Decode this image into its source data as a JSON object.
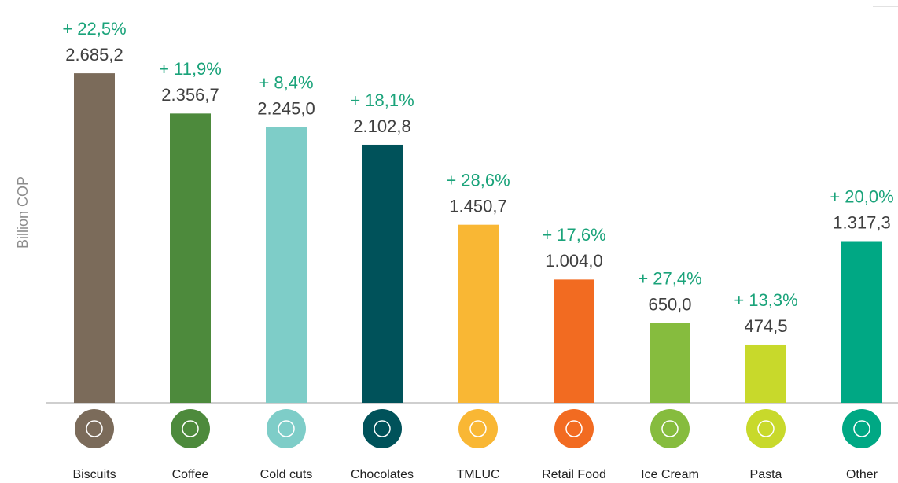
{
  "chart_data": {
    "type": "bar",
    "y_label": "Billion COP",
    "categories": [
      "Biscuits",
      "Coffee",
      "Cold cuts",
      "Chocolates",
      "TMLUC",
      "Retail Food",
      "Ice Cream",
      "Pasta",
      "Other"
    ],
    "values": [
      2685.2,
      2356.7,
      2245.0,
      2102.8,
      1450.7,
      1004.0,
      650.0,
      474.5,
      1317.3
    ],
    "value_labels": [
      "2.685,2",
      "2.356,7",
      "2.245,0",
      "2.102,8",
      "1.450,7",
      "1.004,0",
      "650,0",
      "474,5",
      "1.317,3"
    ],
    "growth_labels": [
      "+ 22,5%",
      "+ 11,9%",
      "+ 8,4%",
      "+ 18,1%",
      "+ 28,6%",
      "+ 17,6%",
      "+ 27,4%",
      "+ 13,3%",
      "+ 20,0%"
    ],
    "colors": [
      "#7b6b5a",
      "#4d8a3c",
      "#7ecdc8",
      "#00525a",
      "#f9b734",
      "#f26b21",
      "#86bc3e",
      "#c8d92b",
      "#00a884"
    ],
    "ylim": [
      0,
      3000
    ]
  }
}
